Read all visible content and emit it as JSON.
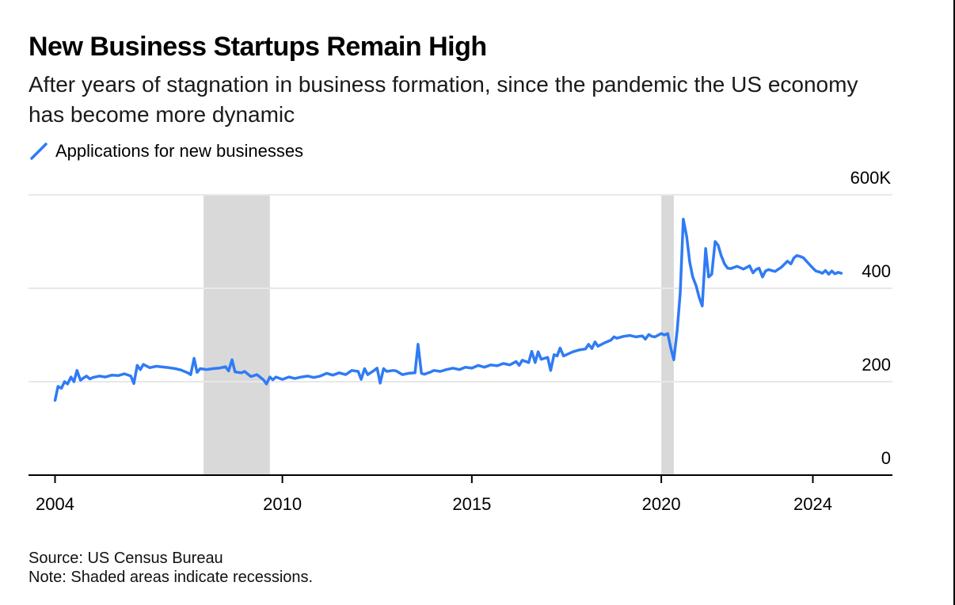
{
  "title": "New Business Startups Remain High",
  "subtitle": "After years of stagnation in business formation, since the pandemic the US economy has become more dynamic",
  "source": "Source: US Census Bureau",
  "note": "Note: Shaded areas indicate recessions.",
  "colors": {
    "line": "#2f7bf5",
    "recession": "#d9d9d9",
    "grid": "#e8e8e8",
    "axis": "#000000"
  },
  "chart_data": {
    "type": "line",
    "title": "New Business Startups Remain High",
    "xlabel": "",
    "ylabel": "",
    "x_ticks": [
      "2004",
      "2010",
      "2015",
      "2020",
      "2024"
    ],
    "y_ticks": [
      "0",
      "200",
      "400",
      "600K"
    ],
    "xlim": [
      2003.3,
      2026.1
    ],
    "ylim": [
      0,
      600000
    ],
    "y_axis_side": "right",
    "grid": true,
    "legend": "top-left",
    "recessions": [
      [
        2007.92,
        2009.67
      ],
      [
        2020.0,
        2020.33
      ]
    ],
    "series": [
      {
        "name": "Applications for new businesses",
        "points": [
          [
            2004.0,
            160000
          ],
          [
            2004.08,
            190000
          ],
          [
            2004.17,
            186000
          ],
          [
            2004.25,
            200000
          ],
          [
            2004.33,
            195000
          ],
          [
            2004.42,
            210000
          ],
          [
            2004.5,
            200000
          ],
          [
            2004.58,
            224000
          ],
          [
            2004.67,
            203000
          ],
          [
            2004.75,
            208000
          ],
          [
            2004.83,
            212000
          ],
          [
            2004.92,
            206000
          ],
          [
            2005.0,
            209000
          ],
          [
            2005.17,
            212000
          ],
          [
            2005.33,
            210000
          ],
          [
            2005.5,
            214000
          ],
          [
            2005.67,
            213000
          ],
          [
            2005.83,
            217000
          ],
          [
            2006.0,
            212000
          ],
          [
            2006.08,
            196000
          ],
          [
            2006.17,
            235000
          ],
          [
            2006.25,
            226000
          ],
          [
            2006.33,
            237000
          ],
          [
            2006.5,
            230000
          ],
          [
            2006.67,
            233000
          ],
          [
            2007.0,
            230000
          ],
          [
            2007.17,
            228000
          ],
          [
            2007.33,
            225000
          ],
          [
            2007.5,
            219000
          ],
          [
            2007.58,
            215000
          ],
          [
            2007.67,
            250000
          ],
          [
            2007.75,
            220000
          ],
          [
            2007.83,
            228000
          ],
          [
            2008.0,
            226000
          ],
          [
            2008.17,
            228000
          ],
          [
            2008.33,
            229000
          ],
          [
            2008.5,
            232000
          ],
          [
            2008.58,
            223000
          ],
          [
            2008.67,
            247000
          ],
          [
            2008.75,
            221000
          ],
          [
            2008.92,
            219000
          ],
          [
            2009.0,
            222000
          ],
          [
            2009.17,
            211000
          ],
          [
            2009.33,
            215000
          ],
          [
            2009.5,
            204000
          ],
          [
            2009.58,
            195000
          ],
          [
            2009.67,
            210000
          ],
          [
            2009.75,
            204000
          ],
          [
            2009.83,
            210000
          ],
          [
            2010.0,
            205000
          ],
          [
            2010.17,
            210000
          ],
          [
            2010.33,
            207000
          ],
          [
            2010.5,
            210000
          ],
          [
            2010.67,
            212000
          ],
          [
            2010.83,
            209000
          ],
          [
            2011.0,
            212000
          ],
          [
            2011.17,
            218000
          ],
          [
            2011.33,
            214000
          ],
          [
            2011.5,
            219000
          ],
          [
            2011.67,
            215000
          ],
          [
            2011.83,
            224000
          ],
          [
            2012.0,
            222000
          ],
          [
            2012.08,
            205000
          ],
          [
            2012.17,
            228000
          ],
          [
            2012.25,
            215000
          ],
          [
            2012.42,
            224000
          ],
          [
            2012.5,
            229000
          ],
          [
            2012.58,
            197000
          ],
          [
            2012.67,
            228000
          ],
          [
            2012.75,
            222000
          ],
          [
            2012.92,
            224000
          ],
          [
            2013.0,
            223000
          ],
          [
            2013.17,
            215000
          ],
          [
            2013.33,
            218000
          ],
          [
            2013.5,
            219000
          ],
          [
            2013.58,
            280000
          ],
          [
            2013.67,
            218000
          ],
          [
            2013.75,
            216000
          ],
          [
            2013.92,
            221000
          ],
          [
            2014.0,
            224000
          ],
          [
            2014.17,
            222000
          ],
          [
            2014.33,
            226000
          ],
          [
            2014.5,
            229000
          ],
          [
            2014.67,
            226000
          ],
          [
            2014.83,
            231000
          ],
          [
            2015.0,
            229000
          ],
          [
            2015.17,
            235000
          ],
          [
            2015.33,
            231000
          ],
          [
            2015.5,
            236000
          ],
          [
            2015.67,
            234000
          ],
          [
            2015.83,
            239000
          ],
          [
            2016.0,
            236000
          ],
          [
            2016.17,
            243000
          ],
          [
            2016.25,
            235000
          ],
          [
            2016.33,
            246000
          ],
          [
            2016.5,
            241000
          ],
          [
            2016.58,
            265000
          ],
          [
            2016.67,
            241000
          ],
          [
            2016.75,
            264000
          ],
          [
            2016.83,
            248000
          ],
          [
            2017.0,
            252000
          ],
          [
            2017.08,
            224000
          ],
          [
            2017.17,
            258000
          ],
          [
            2017.25,
            255000
          ],
          [
            2017.33,
            272000
          ],
          [
            2017.42,
            255000
          ],
          [
            2017.5,
            258000
          ],
          [
            2017.67,
            264000
          ],
          [
            2017.83,
            268000
          ],
          [
            2018.0,
            270000
          ],
          [
            2018.08,
            280000
          ],
          [
            2018.17,
            271000
          ],
          [
            2018.25,
            285000
          ],
          [
            2018.33,
            276000
          ],
          [
            2018.5,
            283000
          ],
          [
            2018.67,
            289000
          ],
          [
            2018.75,
            296000
          ],
          [
            2018.83,
            293000
          ],
          [
            2019.0,
            297000
          ],
          [
            2019.17,
            299000
          ],
          [
            2019.33,
            296000
          ],
          [
            2019.5,
            298000
          ],
          [
            2019.58,
            291000
          ],
          [
            2019.67,
            301000
          ],
          [
            2019.75,
            297000
          ],
          [
            2019.83,
            296000
          ],
          [
            2020.0,
            303000
          ],
          [
            2020.08,
            300000
          ],
          [
            2020.17,
            303000
          ],
          [
            2020.25,
            272000
          ],
          [
            2020.33,
            247000
          ],
          [
            2020.42,
            310000
          ],
          [
            2020.5,
            390000
          ],
          [
            2020.58,
            548000
          ],
          [
            2020.67,
            510000
          ],
          [
            2020.75,
            456000
          ],
          [
            2020.83,
            424000
          ],
          [
            2020.92,
            405000
          ],
          [
            2021.0,
            380000
          ],
          [
            2021.08,
            362000
          ],
          [
            2021.17,
            485000
          ],
          [
            2021.25,
            424000
          ],
          [
            2021.33,
            430000
          ],
          [
            2021.42,
            500000
          ],
          [
            2021.5,
            492000
          ],
          [
            2021.58,
            470000
          ],
          [
            2021.67,
            452000
          ],
          [
            2021.75,
            443000
          ],
          [
            2021.83,
            442000
          ],
          [
            2022.0,
            447000
          ],
          [
            2022.17,
            441000
          ],
          [
            2022.33,
            448000
          ],
          [
            2022.42,
            433000
          ],
          [
            2022.5,
            440000
          ],
          [
            2022.58,
            443000
          ],
          [
            2022.67,
            424000
          ],
          [
            2022.75,
            437000
          ],
          [
            2022.83,
            440000
          ],
          [
            2023.0,
            436000
          ],
          [
            2023.17,
            445000
          ],
          [
            2023.33,
            458000
          ],
          [
            2023.42,
            452000
          ],
          [
            2023.5,
            465000
          ],
          [
            2023.58,
            470000
          ],
          [
            2023.67,
            468000
          ],
          [
            2023.75,
            465000
          ],
          [
            2023.83,
            458000
          ],
          [
            2023.92,
            450000
          ],
          [
            2024.0,
            443000
          ],
          [
            2024.08,
            437000
          ],
          [
            2024.17,
            435000
          ],
          [
            2024.25,
            432000
          ],
          [
            2024.33,
            438000
          ],
          [
            2024.42,
            430000
          ],
          [
            2024.5,
            437000
          ],
          [
            2024.58,
            431000
          ],
          [
            2024.67,
            434000
          ],
          [
            2024.75,
            432000
          ]
        ]
      }
    ]
  }
}
